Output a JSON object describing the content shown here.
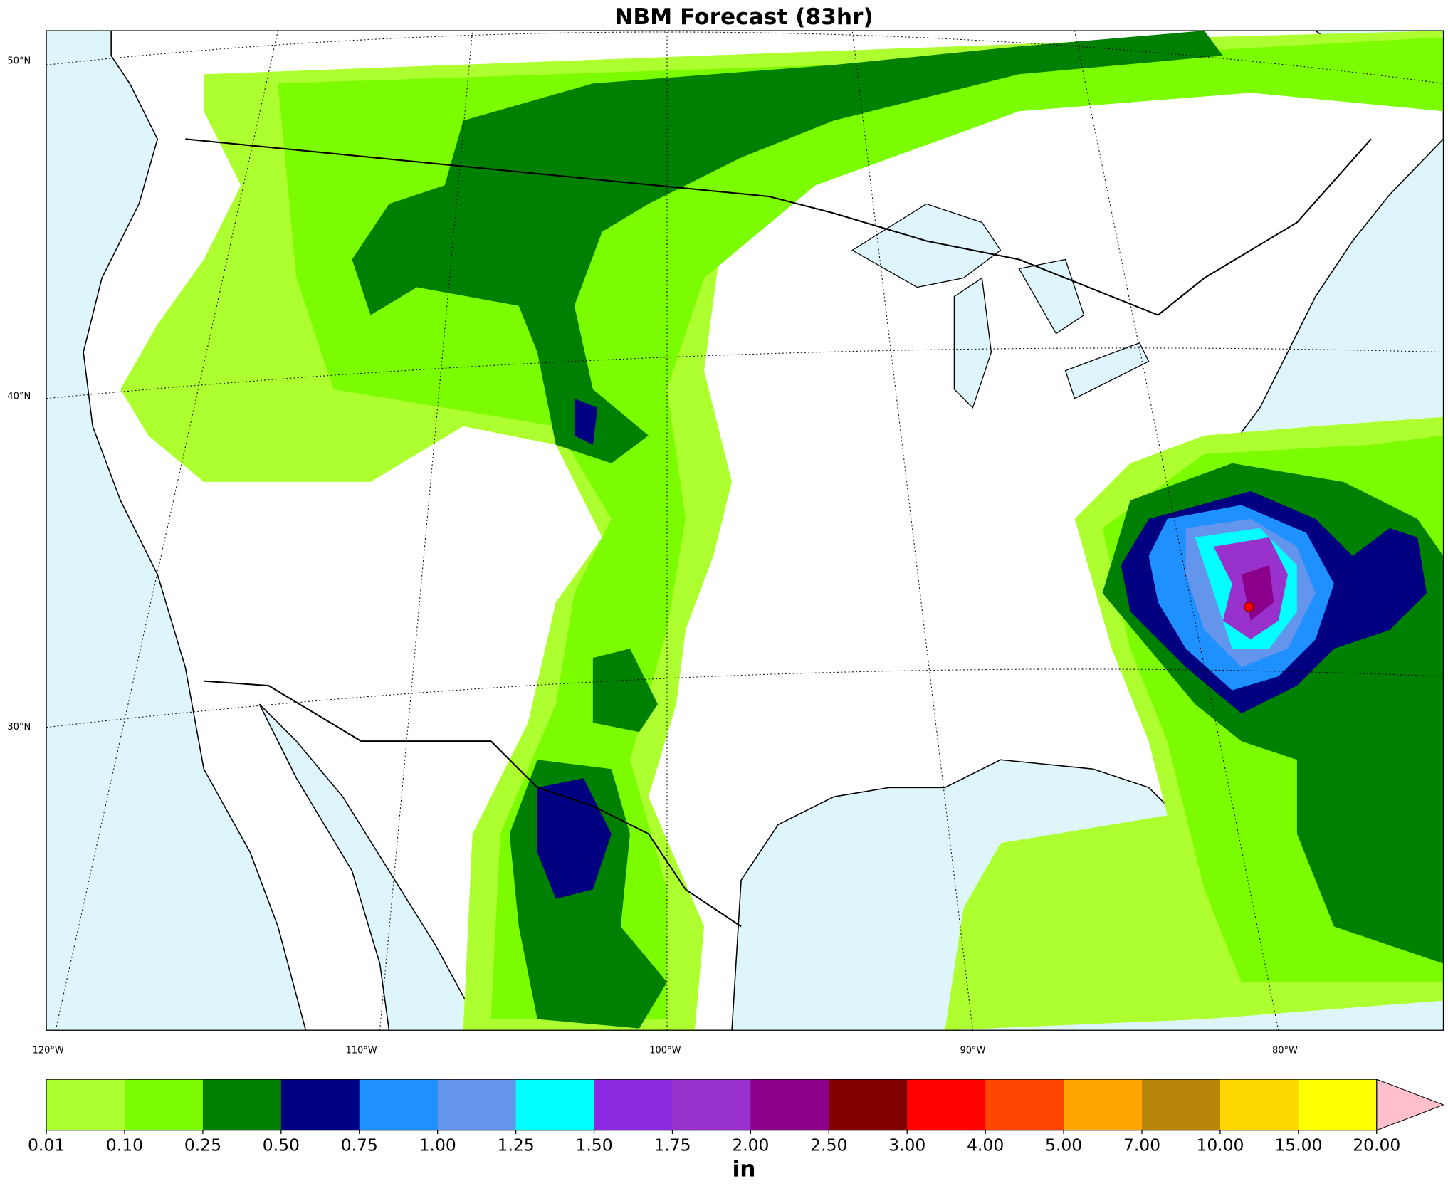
{
  "title": "NBM Forecast (83hr)",
  "lat_labels": [
    "50°N",
    "40°N",
    "30°N"
  ],
  "lon_labels": [
    "120°W",
    "110°W",
    "100°W",
    "90°W",
    "80°W"
  ],
  "colorbar": {
    "levels": [
      "0.01",
      "0.10",
      "0.25",
      "0.50",
      "0.75",
      "1.00",
      "1.25",
      "1.50",
      "1.75",
      "2.00",
      "2.50",
      "3.00",
      "4.00",
      "5.00",
      "7.00",
      "10.00",
      "15.00",
      "20.00"
    ],
    "colors": [
      "#adff2f",
      "#7cfc00",
      "#008000",
      "#000080",
      "#1e90ff",
      "#6495ed",
      "#00ffff",
      "#8a2be2",
      "#9932cc",
      "#8b008b",
      "#800000",
      "#ff0000",
      "#ff4500",
      "#ffa500",
      "#b8860b",
      "#ffd700",
      "#ffff00"
    ],
    "extend_color": "#ffc0cb",
    "unit": "in"
  }
}
